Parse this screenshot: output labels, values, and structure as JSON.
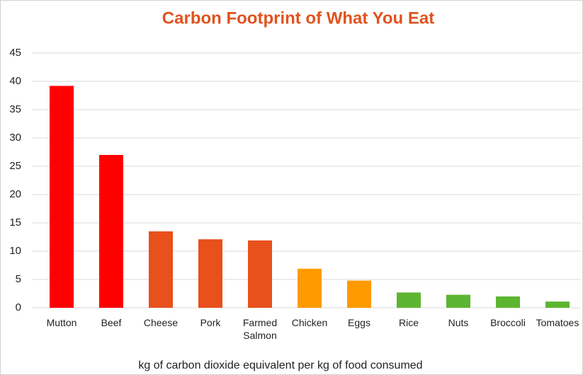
{
  "chart_data": {
    "type": "bar",
    "title": "Carbon Footprint of What You Eat",
    "x_label": "kg of carbon dioxide equivalent per kg of food consumed",
    "categories": [
      "Mutton",
      "Beef",
      "Cheese",
      "Pork",
      "Farmed Salmon",
      "Chicken",
      "Eggs",
      "Rice",
      "Nuts",
      "Broccoli",
      "Tomatoes"
    ],
    "values": [
      39.2,
      27,
      13.5,
      12.1,
      11.9,
      6.9,
      4.8,
      2.7,
      2.3,
      2.0,
      1.1
    ],
    "colors": [
      "#ff0000",
      "#ff0000",
      "#e8501c",
      "#e8501c",
      "#e8501c",
      "#ff9a00",
      "#ff9a00",
      "#5cb531",
      "#5cb531",
      "#5cb531",
      "#5cb531"
    ],
    "ylim": [
      0,
      50
    ],
    "yticks": [
      0,
      5,
      10,
      15,
      20,
      25,
      30,
      35,
      40,
      45
    ],
    "grid": true
  }
}
